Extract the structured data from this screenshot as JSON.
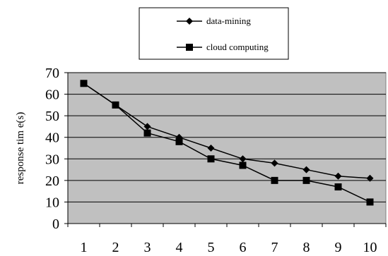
{
  "chart_data": {
    "type": "line",
    "x": [
      1,
      2,
      3,
      4,
      5,
      6,
      7,
      8,
      9,
      10
    ],
    "series": [
      {
        "name": "data-mining",
        "marker": "diamond",
        "values": [
          65,
          55,
          45,
          40,
          35,
          30,
          28,
          25,
          22,
          21
        ]
      },
      {
        "name": "cloud computing",
        "marker": "square",
        "values": [
          65,
          55,
          42,
          38,
          30,
          27,
          20,
          20,
          17,
          10
        ]
      }
    ],
    "title": "",
    "xlabel": "",
    "ylabel": "response tim e(s)",
    "ylim": [
      0,
      70
    ],
    "yticks": [
      0,
      10,
      20,
      30,
      40,
      50,
      60,
      70
    ],
    "xticks": [
      1,
      2,
      3,
      4,
      5,
      6,
      7,
      8,
      9,
      10
    ],
    "grid": "horizontal",
    "legend_position": "top",
    "colors": {
      "plot_background": "#c0c0c0",
      "line": "#000000",
      "grid": "#000000"
    }
  }
}
